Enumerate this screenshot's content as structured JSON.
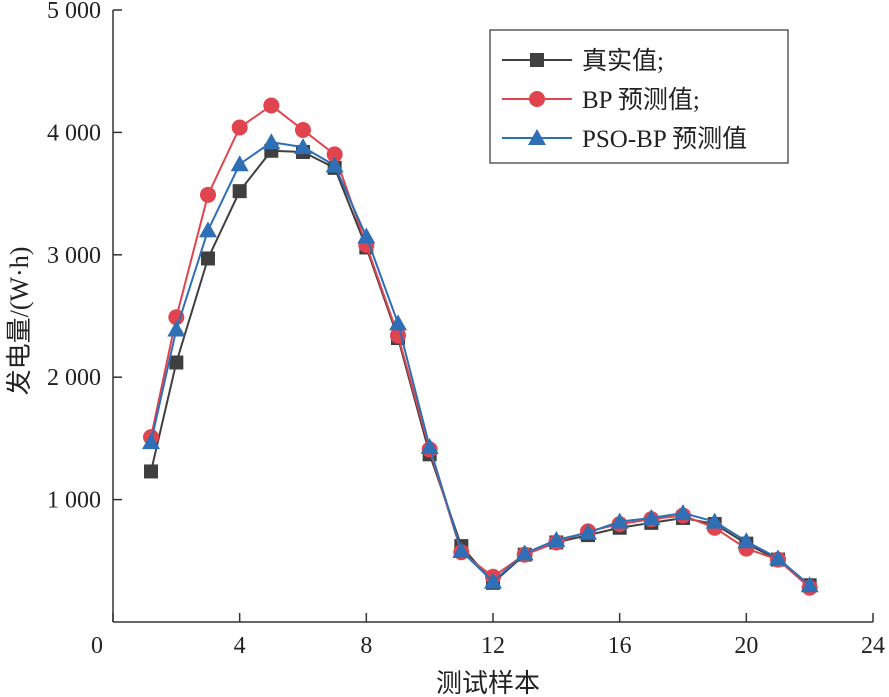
{
  "chart_data": {
    "type": "line",
    "title": "",
    "xlabel": "测试样本",
    "ylabel": "发电量/(W·h)",
    "xlim": [
      0,
      24
    ],
    "ylim": [
      0,
      5000
    ],
    "xticks": [
      0,
      4,
      8,
      12,
      16,
      20,
      24
    ],
    "yticks": [
      1000,
      2000,
      3000,
      4000,
      5000
    ],
    "xtick_labels": [
      "0",
      "4",
      "8",
      "12",
      "16",
      "20",
      "24"
    ],
    "ytick_labels": [
      "1 000",
      "2 000",
      "3 000",
      "4 000",
      "5 000"
    ],
    "grid": false,
    "legend_position": "top-right",
    "x": [
      1.2,
      2,
      3,
      4,
      5,
      6,
      7,
      8,
      9,
      10,
      11,
      12,
      13,
      14,
      15,
      16,
      17,
      18,
      19,
      20,
      21,
      22
    ],
    "series": [
      {
        "name": "真实值;",
        "marker": "square",
        "color": "#3f3f3f",
        "values": [
          1230,
          2120,
          2970,
          3520,
          3850,
          3840,
          3710,
          3060,
          2320,
          1370,
          620,
          320,
          550,
          650,
          710,
          770,
          810,
          850,
          800,
          640,
          510,
          300
        ]
      },
      {
        "name": "BP 预测值;",
        "marker": "circle",
        "color": "#e0444f",
        "values": [
          1510,
          2490,
          3490,
          4040,
          4220,
          4020,
          3820,
          3080,
          2340,
          1410,
          570,
          370,
          550,
          650,
          740,
          800,
          840,
          870,
          770,
          600,
          510,
          280
        ]
      },
      {
        "name": "PSO-BP 预测值",
        "marker": "triangle",
        "color": "#2e6fb6",
        "values": [
          1470,
          2390,
          3200,
          3740,
          3920,
          3880,
          3730,
          3150,
          2440,
          1430,
          580,
          330,
          560,
          670,
          730,
          820,
          850,
          890,
          820,
          660,
          520,
          300
        ]
      }
    ]
  }
}
